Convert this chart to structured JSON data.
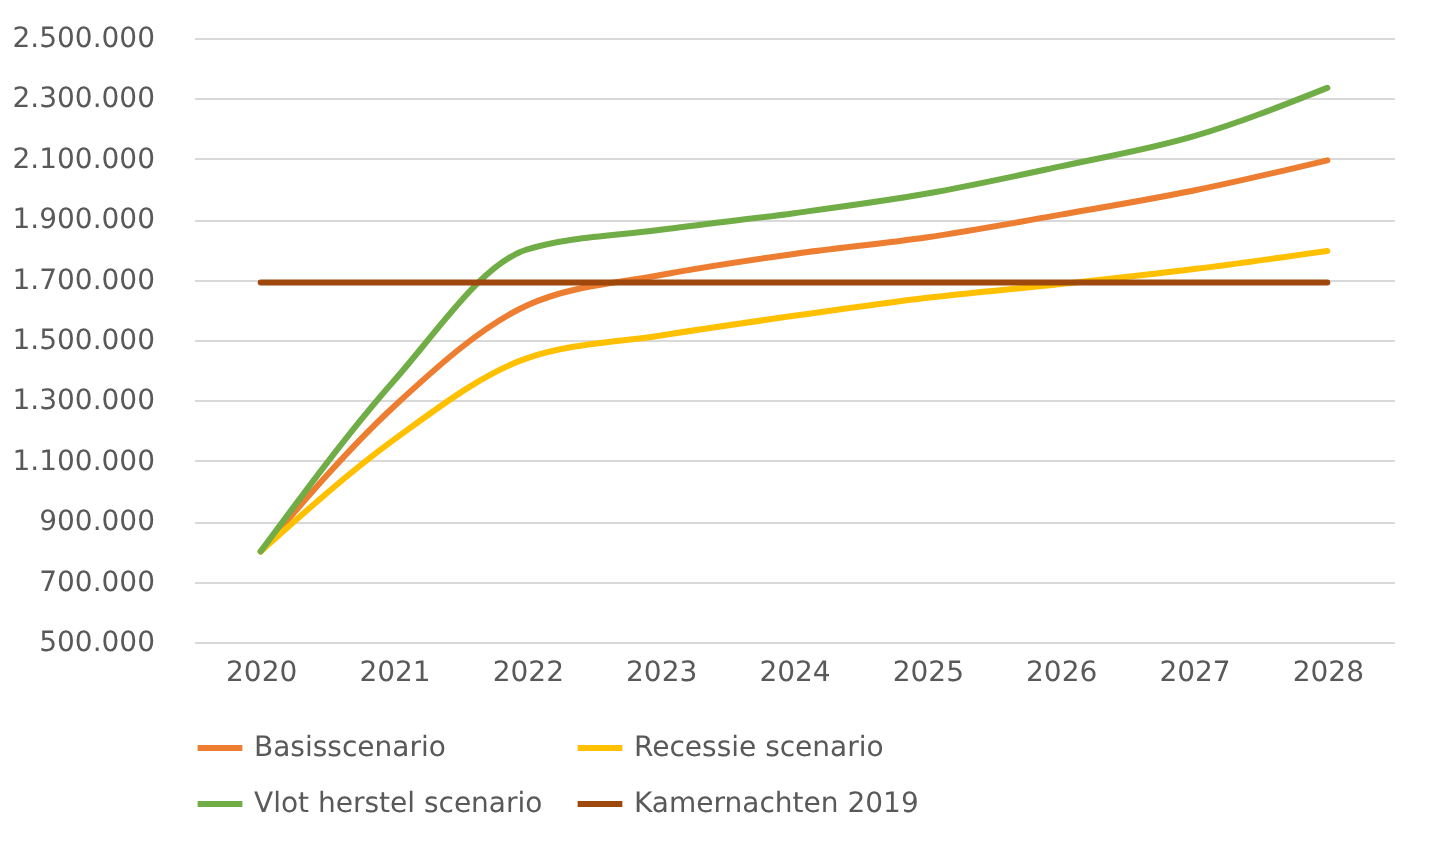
{
  "chart_data": {
    "type": "line",
    "categories": [
      "2020",
      "2021",
      "2022",
      "2023",
      "2024",
      "2025",
      "2026",
      "2027",
      "2028"
    ],
    "series": [
      {
        "name": "Basisscenario",
        "color": "#ed7d31",
        "values": [
          800000,
          1280000,
          1615000,
          1715000,
          1785000,
          1840000,
          1915000,
          1995000,
          2095000
        ]
      },
      {
        "name": "Recessie scenario",
        "color": "#ffc000",
        "values": [
          800000,
          1170000,
          1440000,
          1515000,
          1580000,
          1640000,
          1685000,
          1735000,
          1795000
        ]
      },
      {
        "name": "Vlot herstel scenario",
        "color": "#70ad47",
        "values": [
          800000,
          1365000,
          1800000,
          1865000,
          1920000,
          1985000,
          2075000,
          2175000,
          2335000
        ]
      },
      {
        "name": "Kamernachten 2019",
        "color": "#9e480e",
        "values": [
          1690000,
          1690000,
          1690000,
          1690000,
          1690000,
          1690000,
          1690000,
          1690000,
          1690000
        ]
      }
    ],
    "ylim": [
      500000,
      2500000
    ],
    "yticks": [
      {
        "value": 500000,
        "label": "500.000"
      },
      {
        "value": 700000,
        "label": "700.000"
      },
      {
        "value": 900000,
        "label": "900.000"
      },
      {
        "value": 1100000,
        "label": "1.100.000"
      },
      {
        "value": 1300000,
        "label": "1.300.000"
      },
      {
        "value": 1500000,
        "label": "1.500.000"
      },
      {
        "value": 1700000,
        "label": "1.700.000"
      },
      {
        "value": 1900000,
        "label": "1.900.000"
      },
      {
        "value": 2100000,
        "label": "2.100.000"
      },
      {
        "value": 2300000,
        "label": "2.300.000"
      },
      {
        "value": 2500000,
        "label": "2.500.000"
      }
    ],
    "grid": "y",
    "legend": "bottom",
    "marker": "none",
    "line_style": "solid"
  }
}
